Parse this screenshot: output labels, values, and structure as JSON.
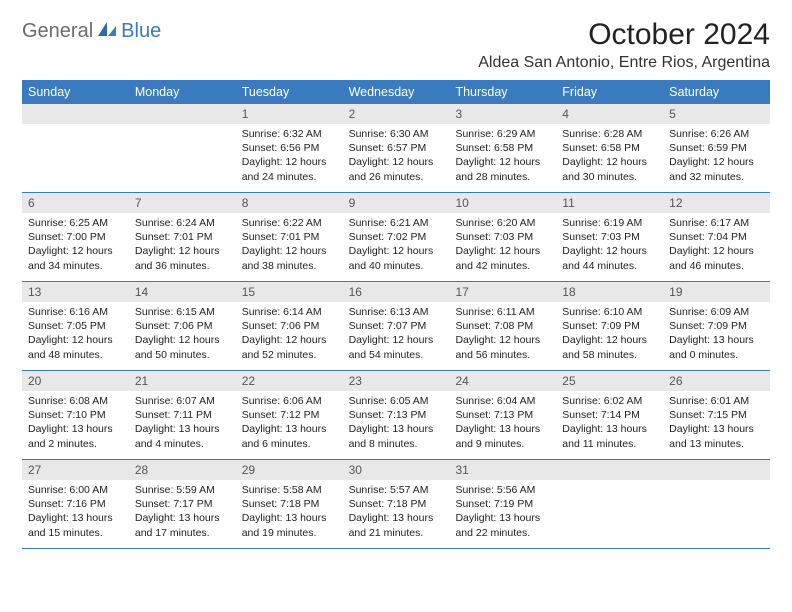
{
  "logo": {
    "text1": "General",
    "text2": "Blue"
  },
  "title": "October 2024",
  "location": "Aldea San Antonio, Entre Rios, Argentina",
  "colors": {
    "header_bg": "#3a7bbf",
    "header_text": "#ffffff",
    "daynum_bg": "#e8e8e8",
    "daynum_text": "#555555",
    "body_text": "#222222",
    "logo_gray": "#6b6b6b",
    "logo_blue": "#3a7bbf",
    "row_border": "#3a7bbf",
    "page_bg": "#ffffff"
  },
  "dayHeaders": [
    "Sunday",
    "Monday",
    "Tuesday",
    "Wednesday",
    "Thursday",
    "Friday",
    "Saturday"
  ],
  "weeks": [
    [
      null,
      null,
      {
        "n": "1",
        "sr": "6:32 AM",
        "ss": "6:56 PM",
        "dl1": "12 hours",
        "dl2": "and 24 minutes."
      },
      {
        "n": "2",
        "sr": "6:30 AM",
        "ss": "6:57 PM",
        "dl1": "12 hours",
        "dl2": "and 26 minutes."
      },
      {
        "n": "3",
        "sr": "6:29 AM",
        "ss": "6:58 PM",
        "dl1": "12 hours",
        "dl2": "and 28 minutes."
      },
      {
        "n": "4",
        "sr": "6:28 AM",
        "ss": "6:58 PM",
        "dl1": "12 hours",
        "dl2": "and 30 minutes."
      },
      {
        "n": "5",
        "sr": "6:26 AM",
        "ss": "6:59 PM",
        "dl1": "12 hours",
        "dl2": "and 32 minutes."
      }
    ],
    [
      {
        "n": "6",
        "sr": "6:25 AM",
        "ss": "7:00 PM",
        "dl1": "12 hours",
        "dl2": "and 34 minutes."
      },
      {
        "n": "7",
        "sr": "6:24 AM",
        "ss": "7:01 PM",
        "dl1": "12 hours",
        "dl2": "and 36 minutes."
      },
      {
        "n": "8",
        "sr": "6:22 AM",
        "ss": "7:01 PM",
        "dl1": "12 hours",
        "dl2": "and 38 minutes."
      },
      {
        "n": "9",
        "sr": "6:21 AM",
        "ss": "7:02 PM",
        "dl1": "12 hours",
        "dl2": "and 40 minutes."
      },
      {
        "n": "10",
        "sr": "6:20 AM",
        "ss": "7:03 PM",
        "dl1": "12 hours",
        "dl2": "and 42 minutes."
      },
      {
        "n": "11",
        "sr": "6:19 AM",
        "ss": "7:03 PM",
        "dl1": "12 hours",
        "dl2": "and 44 minutes."
      },
      {
        "n": "12",
        "sr": "6:17 AM",
        "ss": "7:04 PM",
        "dl1": "12 hours",
        "dl2": "and 46 minutes."
      }
    ],
    [
      {
        "n": "13",
        "sr": "6:16 AM",
        "ss": "7:05 PM",
        "dl1": "12 hours",
        "dl2": "and 48 minutes."
      },
      {
        "n": "14",
        "sr": "6:15 AM",
        "ss": "7:06 PM",
        "dl1": "12 hours",
        "dl2": "and 50 minutes."
      },
      {
        "n": "15",
        "sr": "6:14 AM",
        "ss": "7:06 PM",
        "dl1": "12 hours",
        "dl2": "and 52 minutes."
      },
      {
        "n": "16",
        "sr": "6:13 AM",
        "ss": "7:07 PM",
        "dl1": "12 hours",
        "dl2": "and 54 minutes."
      },
      {
        "n": "17",
        "sr": "6:11 AM",
        "ss": "7:08 PM",
        "dl1": "12 hours",
        "dl2": "and 56 minutes."
      },
      {
        "n": "18",
        "sr": "6:10 AM",
        "ss": "7:09 PM",
        "dl1": "12 hours",
        "dl2": "and 58 minutes."
      },
      {
        "n": "19",
        "sr": "6:09 AM",
        "ss": "7:09 PM",
        "dl1": "13 hours",
        "dl2": "and 0 minutes."
      }
    ],
    [
      {
        "n": "20",
        "sr": "6:08 AM",
        "ss": "7:10 PM",
        "dl1": "13 hours",
        "dl2": "and 2 minutes."
      },
      {
        "n": "21",
        "sr": "6:07 AM",
        "ss": "7:11 PM",
        "dl1": "13 hours",
        "dl2": "and 4 minutes."
      },
      {
        "n": "22",
        "sr": "6:06 AM",
        "ss": "7:12 PM",
        "dl1": "13 hours",
        "dl2": "and 6 minutes."
      },
      {
        "n": "23",
        "sr": "6:05 AM",
        "ss": "7:13 PM",
        "dl1": "13 hours",
        "dl2": "and 8 minutes."
      },
      {
        "n": "24",
        "sr": "6:04 AM",
        "ss": "7:13 PM",
        "dl1": "13 hours",
        "dl2": "and 9 minutes."
      },
      {
        "n": "25",
        "sr": "6:02 AM",
        "ss": "7:14 PM",
        "dl1": "13 hours",
        "dl2": "and 11 minutes."
      },
      {
        "n": "26",
        "sr": "6:01 AM",
        "ss": "7:15 PM",
        "dl1": "13 hours",
        "dl2": "and 13 minutes."
      }
    ],
    [
      {
        "n": "27",
        "sr": "6:00 AM",
        "ss": "7:16 PM",
        "dl1": "13 hours",
        "dl2": "and 15 minutes."
      },
      {
        "n": "28",
        "sr": "5:59 AM",
        "ss": "7:17 PM",
        "dl1": "13 hours",
        "dl2": "and 17 minutes."
      },
      {
        "n": "29",
        "sr": "5:58 AM",
        "ss": "7:18 PM",
        "dl1": "13 hours",
        "dl2": "and 19 minutes."
      },
      {
        "n": "30",
        "sr": "5:57 AM",
        "ss": "7:18 PM",
        "dl1": "13 hours",
        "dl2": "and 21 minutes."
      },
      {
        "n": "31",
        "sr": "5:56 AM",
        "ss": "7:19 PM",
        "dl1": "13 hours",
        "dl2": "and 22 minutes."
      },
      null,
      null
    ]
  ],
  "labels": {
    "sunrise": "Sunrise:",
    "sunset": "Sunset:",
    "daylight": "Daylight:"
  }
}
